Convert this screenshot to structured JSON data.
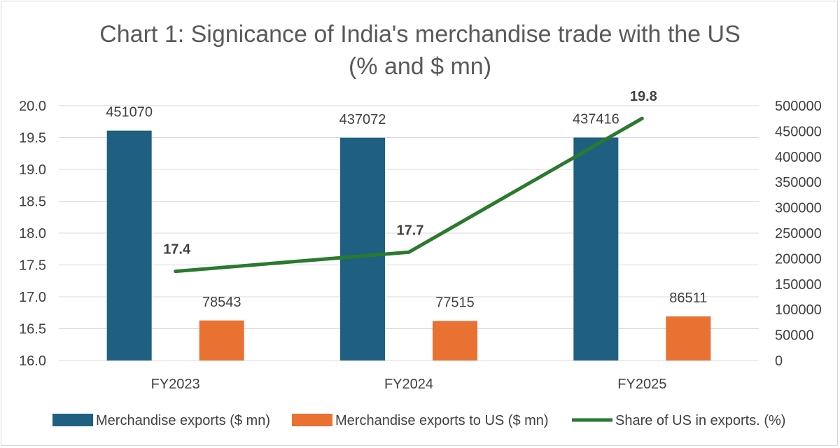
{
  "chart_data": {
    "type": "bar",
    "title": "Chart 1: Signicance of India's merchandise trade with the US",
    "subtitle": "(% and $ mn)",
    "categories": [
      "FY2023",
      "FY2024",
      "FY2025"
    ],
    "series": [
      {
        "name": "Merchandise exports ($ mn)",
        "type": "bar",
        "axis": "right",
        "color": "#1f5f82",
        "values": [
          451070,
          437072,
          437416
        ],
        "labels": [
          "451070",
          "437072",
          "437416"
        ]
      },
      {
        "name": "Merchandise exports to US ($ mn)",
        "type": "bar",
        "axis": "right",
        "color": "#e97132",
        "values": [
          78543,
          77515,
          86511
        ],
        "labels": [
          "78543",
          "77515",
          "86511"
        ]
      },
      {
        "name": "Share of US in exports. (%)",
        "type": "line",
        "axis": "left",
        "color": "#2a7a2e",
        "values": [
          17.4,
          17.7,
          19.8
        ],
        "labels": [
          "17.4",
          "17.7",
          "19.8"
        ]
      }
    ],
    "y_left": {
      "range": [
        16.0,
        20.0
      ],
      "ticks": [
        "16.0",
        "16.5",
        "17.0",
        "17.5",
        "18.0",
        "18.5",
        "19.0",
        "19.5",
        "20.0"
      ]
    },
    "y_right": {
      "range": [
        0,
        500000
      ],
      "ticks": [
        "0",
        "50000",
        "100000",
        "150000",
        "200000",
        "250000",
        "300000",
        "350000",
        "400000",
        "450000",
        "500000"
      ]
    },
    "grid": true,
    "legend": "bottom",
    "xlabel": "",
    "ylabel": ""
  }
}
